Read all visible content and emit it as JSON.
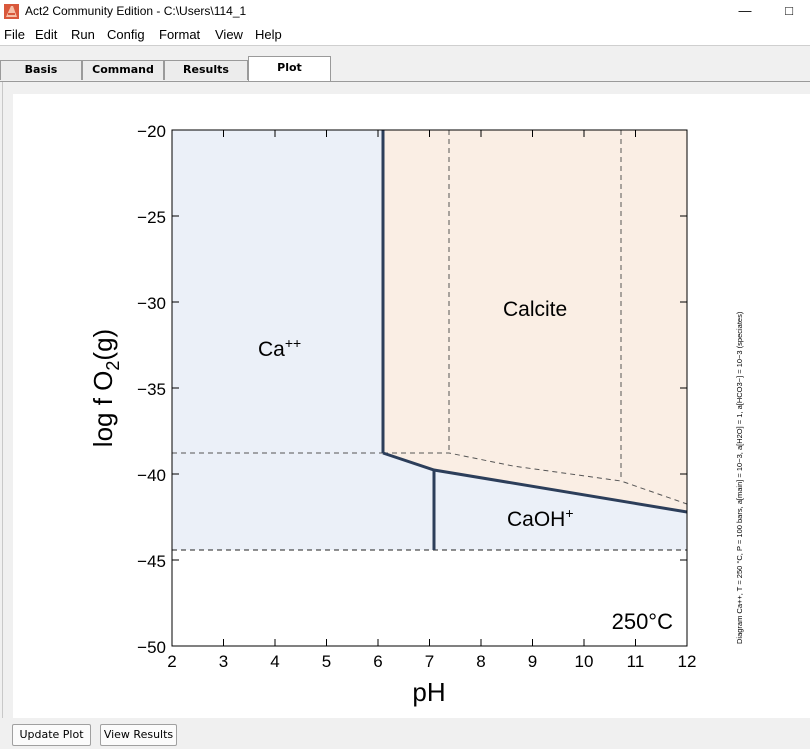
{
  "window": {
    "title": "Act2 Community Edition - C:\\Users\\114_1",
    "minimize": "—",
    "maximize": "□"
  },
  "menu": [
    "File",
    "Edit",
    "Run",
    "Config",
    "Format",
    "View",
    "Help"
  ],
  "tabs": [
    {
      "label": "Basis",
      "active": false
    },
    {
      "label": "Command",
      "active": false
    },
    {
      "label": "Results",
      "active": false
    },
    {
      "label": "Plot",
      "active": true
    }
  ],
  "plot": {
    "x_label": "pH",
    "y_label": "log f O",
    "y_label_sub": "2",
    "y_label_tail": "(g)",
    "temperature": "250°C",
    "x_ticks": [
      "2",
      "3",
      "4",
      "5",
      "6",
      "7",
      "8",
      "9",
      "10",
      "11",
      "12"
    ],
    "y_ticks": [
      "−20",
      "−25",
      "−30",
      "−35",
      "−40",
      "−45",
      "−50"
    ],
    "regions": [
      {
        "label": "Calcite",
        "sup": ""
      },
      {
        "label": "Ca",
        "sup": "++"
      },
      {
        "label": "CaOH",
        "sup": "+"
      }
    ],
    "caption": "Diagram Ca++, T = 250 °C, P = 100 bars, a[main] = 10−3, a[H2O] = 1, a[HCO3−] = 10−3 (speciates)",
    "colors": {
      "ca_region": "#ebf0f8",
      "calcite_region": "#faeee4",
      "boundary": "#2c3e5a"
    }
  },
  "buttons": {
    "update_plot": "Update Plot",
    "view_results": "View Results"
  }
}
